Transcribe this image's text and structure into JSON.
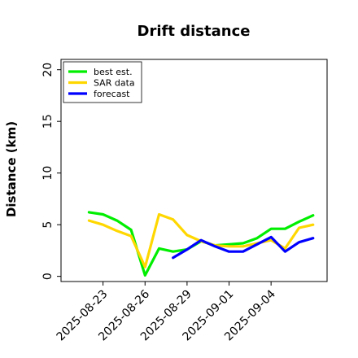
{
  "chart_data": {
    "type": "line",
    "title": "Drift distance",
    "xlabel": "",
    "ylabel": "Distance (km)",
    "ylim": [
      -0.5,
      21
    ],
    "yticks": [
      0,
      5,
      10,
      15,
      20
    ],
    "xticks": [
      "2025-08-23",
      "2025-08-26",
      "2025-08-29",
      "2025-09-01",
      "2025-09-04"
    ],
    "xlim": [
      "2025-08-20",
      "2025-09-08"
    ],
    "grid": false,
    "legend_position": "top-left",
    "series": [
      {
        "name": "best est.",
        "color": "#00ee00",
        "points": [
          [
            "2025-08-22",
            6.2
          ],
          [
            "2025-08-23",
            6.0
          ],
          [
            "2025-08-24",
            5.4
          ],
          [
            "2025-08-25",
            4.5
          ],
          [
            "2025-08-26",
            0.1
          ],
          [
            "2025-08-27",
            2.7
          ],
          [
            "2025-08-28",
            2.4
          ],
          [
            "2025-08-29",
            2.6
          ],
          [
            "2025-08-30",
            3.4
          ],
          [
            "2025-08-31",
            3.0
          ],
          [
            "2025-09-01",
            3.1
          ],
          [
            "2025-09-02",
            3.2
          ],
          [
            "2025-09-03",
            3.7
          ],
          [
            "2025-09-04",
            4.6
          ],
          [
            "2025-09-05",
            4.6
          ],
          [
            "2025-09-06",
            5.3
          ],
          [
            "2025-09-07",
            5.9
          ]
        ]
      },
      {
        "name": "SAR data",
        "color": "#ffd700",
        "points": [
          [
            "2025-08-22",
            5.4
          ],
          [
            "2025-08-23",
            5.0
          ],
          [
            "2025-08-24",
            4.4
          ],
          [
            "2025-08-25",
            3.9
          ],
          [
            "2025-08-26",
            0.9
          ],
          [
            "2025-08-27",
            6.0
          ],
          [
            "2025-08-28",
            5.5
          ],
          [
            "2025-08-29",
            4.0
          ],
          [
            "2025-08-30",
            3.4
          ],
          [
            "2025-08-31",
            3.0
          ],
          [
            "2025-09-01",
            2.9
          ],
          [
            "2025-09-02",
            2.9
          ],
          [
            "2025-09-03",
            3.2
          ],
          [
            "2025-09-04",
            3.5
          ],
          [
            "2025-09-05",
            2.7
          ],
          [
            "2025-09-06",
            4.7
          ],
          [
            "2025-09-07",
            5.0
          ]
        ]
      },
      {
        "name": "forecast",
        "color": "#0000ff",
        "points": [
          [
            "2025-08-28",
            1.8
          ],
          [
            "2025-08-29",
            2.6
          ],
          [
            "2025-08-30",
            3.5
          ],
          [
            "2025-08-31",
            2.9
          ],
          [
            "2025-09-01",
            2.4
          ],
          [
            "2025-09-02",
            2.4
          ],
          [
            "2025-09-03",
            3.1
          ],
          [
            "2025-09-04",
            3.8
          ],
          [
            "2025-09-05",
            2.4
          ],
          [
            "2025-09-06",
            3.3
          ],
          [
            "2025-09-07",
            3.7
          ]
        ]
      }
    ]
  }
}
